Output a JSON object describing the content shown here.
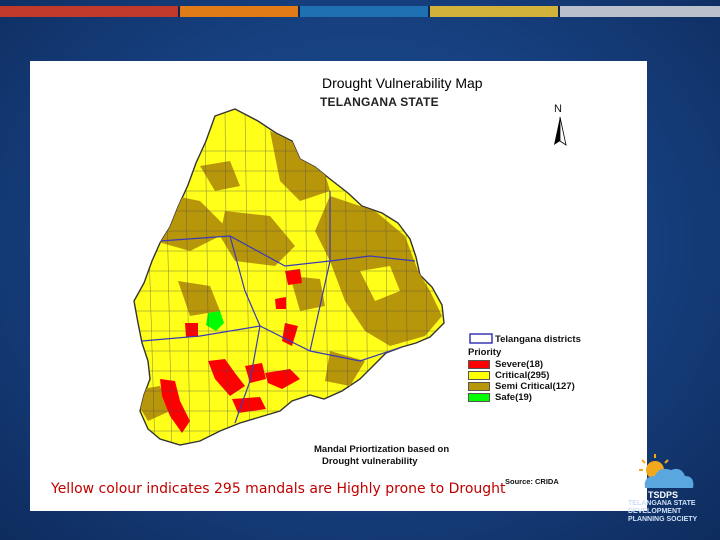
{
  "slide": {
    "accent_colors": [
      "#c0392b",
      "#d7b33a",
      "#e07b18",
      "#1f4e8c",
      "#1f6fb3",
      "#d3b23b",
      "#b9c2cc"
    ]
  },
  "map": {
    "title": "Drought Vulnerability Map",
    "subtitle": "TELANGANA STATE",
    "north_label": "N",
    "legend": {
      "boundary_label": "Telangana districts",
      "heading": "Priority",
      "items": [
        {
          "label": "Severe(18)",
          "color": "#ff0000"
        },
        {
          "label": "Critical(295)",
          "color": "#ffff00"
        },
        {
          "label": "Semi Critical(127)",
          "color": "#b8960a"
        },
        {
          "label": "Safe(19)",
          "color": "#00ff00"
        }
      ]
    },
    "caption_line1": "Mandal Priortization based on",
    "caption_line2": "Drought vulnerability",
    "source": "Source: CRIDA"
  },
  "note": "Yellow colour indicates 295 mandals are Highly prone to Drought",
  "org": {
    "abbr": "TSDPS",
    "name_line1": "TELANGANA STATE",
    "name_line2": "DEVELOPMENT",
    "name_line3": "PLANNING SOCIETY"
  }
}
